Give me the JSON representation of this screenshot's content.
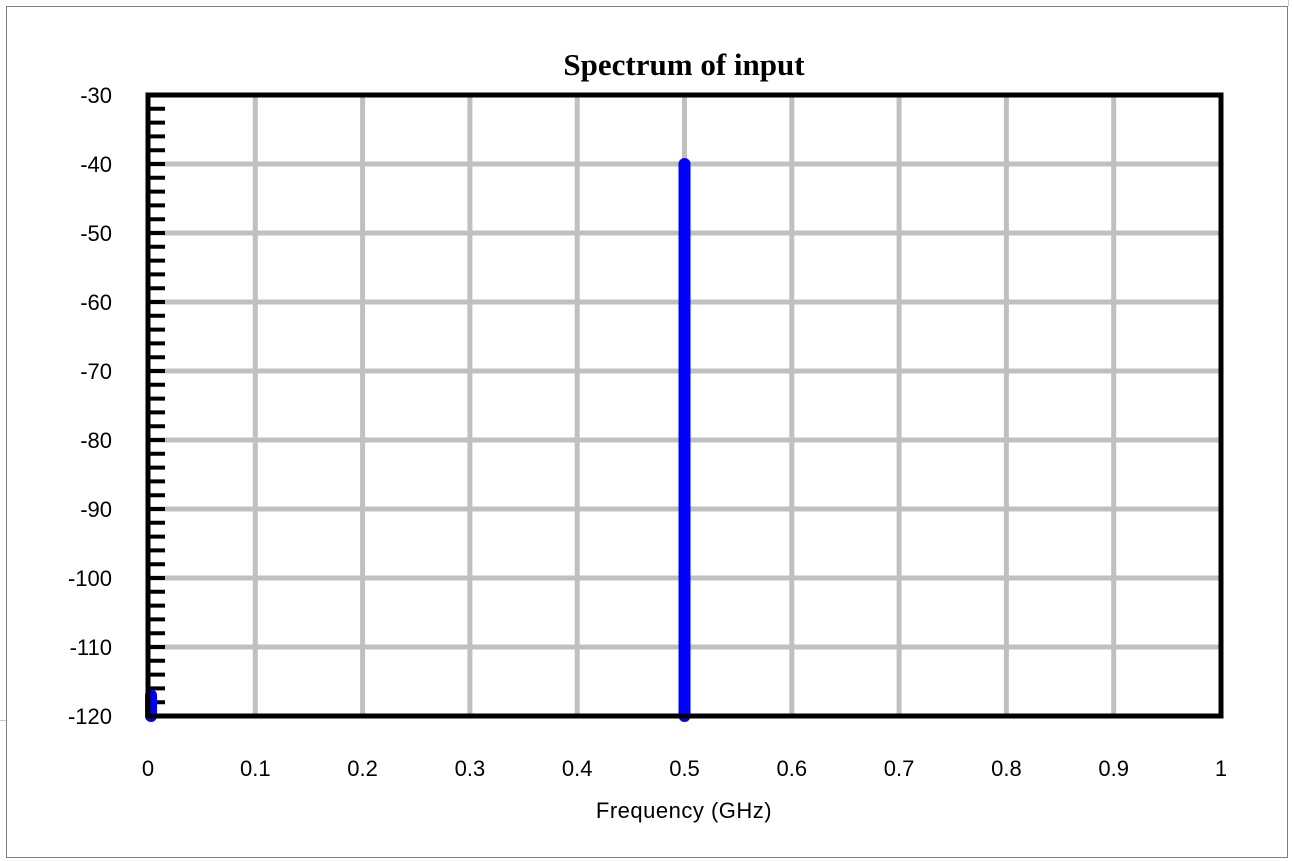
{
  "chart_data": {
    "type": "line",
    "title": "Spectrum of input",
    "xlabel": "Frequency (GHz)",
    "ylabel": "",
    "xlim": [
      0,
      1
    ],
    "ylim": [
      -120,
      -30
    ],
    "x_ticks": [
      "0",
      "0.1",
      "0.2",
      "0.3",
      "0.4",
      "0.5",
      "0.6",
      "0.7",
      "0.8",
      "0.9",
      "1"
    ],
    "y_ticks": [
      "-30",
      "-40",
      "-50",
      "-60",
      "-70",
      "-80",
      "-90",
      "-100",
      "-110",
      "-120"
    ],
    "grid": true,
    "series": [
      {
        "color": "#0000ff",
        "points": [
          {
            "x": 0.0,
            "y": -120
          },
          {
            "x": 0.0,
            "y": -117
          },
          {
            "x": 0.5,
            "y": -120
          },
          {
            "x": 0.5,
            "y": -40
          }
        ]
      }
    ]
  }
}
